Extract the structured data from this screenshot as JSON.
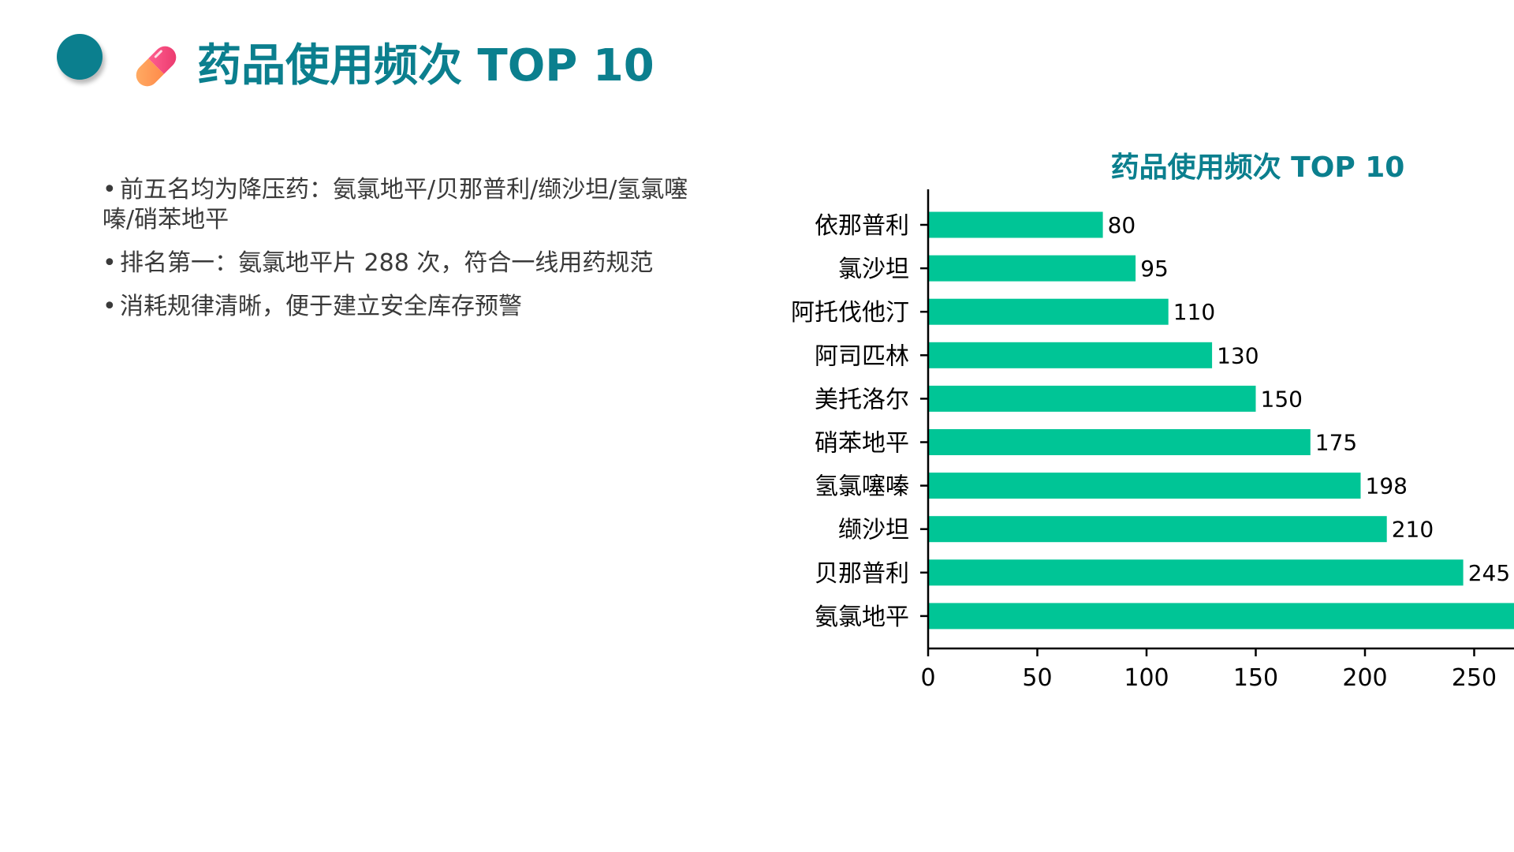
{
  "slide": {
    "title": "药品使用频次 TOP 10",
    "bullets": [
      "前五名均为降压药：氨氯地平/贝那普利/缬沙坦/氢氯噻嗪/硝苯地平",
      "排名第一：氨氯地平片 288 次，符合一线用药规范",
      "消耗规律清晰，便于建立安全库存预警"
    ],
    "bullet_mark": "•",
    "icon": "pill-icon"
  },
  "colors": {
    "accent": "#0b7f8e",
    "bar": "#00c596",
    "text": "#3a3a3a",
    "axis": "#000000"
  },
  "chart_data": {
    "type": "bar",
    "orientation": "horizontal",
    "title": "药品使用频次 TOP 10",
    "xlabel": "",
    "ylabel": "",
    "categories": [
      "依那普利",
      "氯沙坦",
      "阿托伐他汀",
      "阿司匹林",
      "美托洛尔",
      "硝苯地平",
      "氢氯噻嗪",
      "缬沙坦",
      "贝那普利",
      "氨氯地平"
    ],
    "values": [
      80,
      95,
      110,
      130,
      150,
      175,
      198,
      210,
      245,
      288
    ],
    "data_labels": [
      "80",
      "95",
      "110",
      "130",
      "150",
      "175",
      "198",
      "210",
      "245",
      ""
    ],
    "xlim": [
      0,
      288
    ],
    "xticks": [
      0,
      50,
      100,
      150,
      200,
      250
    ],
    "grid": false,
    "legend": "none"
  }
}
